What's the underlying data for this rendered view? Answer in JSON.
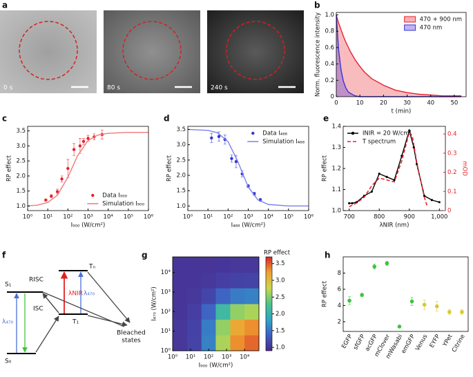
{
  "panel_labels": [
    "a",
    "b",
    "c",
    "d",
    "e",
    "f",
    "g",
    "h"
  ],
  "images": {
    "timestamps": [
      "0 s",
      "80 s",
      "240 s"
    ]
  },
  "diagram": {
    "S1": "S₁",
    "S0": "S₀",
    "T1": "T₁",
    "Tn": "Tₙ",
    "risc": "RISC",
    "isc": "ISC",
    "pump": "λ₄₇₀",
    "nir": "λNIR",
    "probe": "λ₄₇₀",
    "bleached": [
      "Bleached",
      "states"
    ]
  },
  "chart_data": [
    {
      "type": "line",
      "xlabel": "t (min)",
      "ylabel": "Norm. fluorescence intensity",
      "fill": true,
      "legend": "upper right",
      "x": [
        0,
        1,
        2,
        3,
        4,
        5,
        6,
        8,
        10,
        12,
        15,
        20,
        25,
        30,
        35,
        40,
        45,
        50,
        53
      ],
      "xlim": [
        0,
        55
      ],
      "xticks": [
        0,
        10,
        20,
        30,
        40,
        50
      ],
      "ylim": [
        0,
        1.03
      ],
      "yticks": [
        0,
        0.2,
        0.4,
        0.6,
        0.8,
        {
          "value": 1,
          "label": "1.0"
        }
      ],
      "series": [
        {
          "name": "470 + 900 nm",
          "color": "#e8202a",
          "style": "line",
          "values": [
            1.0,
            0.9,
            0.82,
            0.74,
            0.67,
            0.61,
            0.55,
            0.45,
            0.37,
            0.3,
            0.22,
            0.14,
            0.08,
            0.05,
            0.03,
            0.02,
            0.01,
            0.01,
            0.01
          ]
        },
        {
          "name": "470 nm",
          "color": "#3b2fd6",
          "style": "line",
          "values": [
            1.0,
            0.57,
            0.33,
            0.19,
            0.11,
            0.06,
            0.04,
            0.01,
            0,
            0,
            0,
            0,
            0,
            0,
            0,
            0,
            0,
            0,
            0
          ]
        }
      ]
    },
    {
      "type": "scatter",
      "xlabel": "I₉₀₀ (W/cm²)",
      "ylabel": "RP effect",
      "xscale": "log",
      "legend": "lower right",
      "xlim": [
        1,
        1000000
      ],
      "xticks": [
        {
          "value": 1,
          "label": "10⁰"
        },
        {
          "value": 10,
          "label": "10¹"
        },
        {
          "value": 100,
          "label": "10²"
        },
        {
          "value": 1000,
          "label": "10³"
        },
        {
          "value": 10000,
          "label": "10⁴"
        },
        {
          "value": 100000,
          "label": "10⁵"
        },
        {
          "value": 1000000,
          "label": "10⁶"
        }
      ],
      "ylim": [
        0.85,
        3.65
      ],
      "yticks": [
        {
          "value": 1,
          "label": "1.0"
        },
        1.5,
        {
          "value": 2,
          "label": "2.0"
        },
        2.5,
        {
          "value": 3,
          "label": "3.0"
        },
        3.5
      ],
      "series": [
        {
          "name": "Data I₉₀₀",
          "color": "#e8202a",
          "style": "points",
          "x": [
            8,
            15,
            30,
            50,
            100,
            200,
            400,
            600,
            1000,
            2000,
            5000
          ],
          "values": [
            1.2,
            1.33,
            1.48,
            1.9,
            2.25,
            2.88,
            3.0,
            3.15,
            3.25,
            3.3,
            3.38
          ],
          "errors": [
            0.03,
            0.05,
            0.08,
            0.1,
            0.3,
            0.2,
            0.25,
            0.1,
            0.1,
            0.1,
            0.15
          ]
        },
        {
          "name": "Simulation I₉₀₀",
          "color": "#f07878",
          "style": "line",
          "x": [
            1,
            3,
            10,
            30,
            100,
            300,
            1000,
            3000,
            10000,
            100000,
            1000000
          ],
          "values": [
            1.01,
            1.03,
            1.12,
            1.36,
            1.96,
            2.67,
            3.18,
            3.36,
            3.42,
            3.45,
            3.45
          ]
        }
      ]
    },
    {
      "type": "scatter",
      "xlabel": "I₄₈₈ (W/cm²)",
      "ylabel": "RP effect",
      "xscale": "log",
      "legend": "upper right",
      "xlim": [
        1,
        1000000
      ],
      "xticks": [
        {
          "value": 1,
          "label": "10⁰"
        },
        {
          "value": 10,
          "label": "10¹"
        },
        {
          "value": 100,
          "label": "10²"
        },
        {
          "value": 1000,
          "label": "10³"
        },
        {
          "value": 10000,
          "label": "10⁴"
        },
        {
          "value": 100000,
          "label": "10⁵"
        },
        {
          "value": 1000000,
          "label": "10⁶"
        }
      ],
      "ylim": [
        0.85,
        3.6
      ],
      "yticks": [
        {
          "value": 1,
          "label": "1.0"
        },
        1.5,
        {
          "value": 2,
          "label": "2.0"
        },
        2.5,
        {
          "value": 3,
          "label": "3.0"
        },
        3.5
      ],
      "series": [
        {
          "name": "Data I₄₈₈",
          "color": "#2f35d8",
          "style": "points",
          "x": [
            15,
            35,
            70,
            150,
            250,
            500,
            1000,
            2000,
            4000
          ],
          "values": [
            3.22,
            3.27,
            3.17,
            2.55,
            2.45,
            2.05,
            1.65,
            1.4,
            1.2
          ],
          "errors": [
            0.15,
            0.15,
            0.15,
            0.12,
            0.2,
            0.1,
            0.05,
            0.05,
            0.05
          ]
        },
        {
          "name": "Simulation I₄₈₈",
          "color": "#7b80ea",
          "style": "line",
          "x": [
            1,
            10,
            30,
            100,
            300,
            1000,
            3000,
            10000,
            100000,
            1000000
          ],
          "values": [
            3.5,
            3.47,
            3.39,
            3.1,
            2.46,
            1.62,
            1.2,
            1.05,
            1.0,
            1.0
          ]
        }
      ]
    },
    {
      "type": "line",
      "xlabel": "λNIR (nm)",
      "ylabel": "RP effect",
      "y2label": "mOD",
      "y2color": "#e8202a",
      "legend": "upper left",
      "xlim": [
        680,
        1020
      ],
      "xticks": [
        700,
        800,
        900,
        {
          "value": 1000,
          "label": "1,000"
        }
      ],
      "ylim": [
        1.0,
        1.4
      ],
      "yticks": [
        {
          "value": 1,
          "label": "1.0"
        },
        1.1,
        1.2,
        1.3,
        1.4
      ],
      "y2lim": [
        0,
        0.44
      ],
      "y2ticks": [
        0,
        0.1,
        0.2,
        0.3,
        0.4
      ],
      "series": [
        {
          "name": "INIR = 20 W/cm²",
          "color": "#000000",
          "style": "line-points",
          "x": [
            700,
            710,
            725,
            750,
            775,
            800,
            825,
            850,
            875,
            900,
            915,
            925,
            950,
            975,
            1000
          ],
          "values": [
            1.035,
            1.035,
            1.04,
            1.07,
            1.09,
            1.175,
            1.16,
            1.145,
            1.26,
            1.38,
            1.3,
            1.22,
            1.07,
            1.05,
            1.04
          ]
        },
        {
          "name": "T spectrum",
          "color": "#e8202a",
          "style": "line",
          "dash": true,
          "axis": "y2",
          "x": [
            700,
            725,
            750,
            775,
            800,
            825,
            850,
            875,
            890,
            900,
            910,
            925,
            950,
            960
          ],
          "values": [
            0.02,
            0.04,
            0.07,
            0.13,
            0.17,
            0.16,
            0.15,
            0.26,
            0.35,
            0.41,
            0.39,
            0.25,
            0.07,
            0.02
          ]
        }
      ]
    },
    {
      "type": "heatmap",
      "xlabel": "I₉₀₀ (W/cm²)",
      "ylabel": "I₄₇₀ (W/cm²)",
      "xscale": "log",
      "yscale": "log",
      "xlim": [
        1,
        63000
      ],
      "ylim": [
        1,
        63000
      ],
      "xticks": [
        {
          "value": 1,
          "label": "10⁰"
        },
        {
          "value": 10,
          "label": "10¹"
        },
        {
          "value": 100,
          "label": "10²"
        },
        {
          "value": 1000,
          "label": "10³"
        },
        {
          "value": 10000,
          "label": "10⁴"
        }
      ],
      "yticks": [
        {
          "value": 1,
          "label": "10⁰"
        },
        {
          "value": 10,
          "label": "10¹"
        },
        {
          "value": 100,
          "label": "10²"
        },
        {
          "value": 1000,
          "label": "10³"
        },
        {
          "value": 10000,
          "label": "10⁴"
        }
      ],
      "xbins": [
        1,
        6.3,
        40,
        250,
        1600,
        10000,
        63000
      ],
      "ybins": [
        1,
        6.3,
        40,
        250,
        1600,
        10000,
        63000
      ],
      "z": [
        [
          1.02,
          1.12,
          1.59,
          2.66,
          3.3,
          3.45
        ],
        [
          1.02,
          1.11,
          1.56,
          2.56,
          3.16,
          3.3
        ],
        [
          1.01,
          1.08,
          1.4,
          2.12,
          2.56,
          2.66
        ],
        [
          1.0,
          1.03,
          1.14,
          1.4,
          1.56,
          1.59
        ],
        [
          1.0,
          1.01,
          1.03,
          1.08,
          1.11,
          1.12
        ],
        [
          1.0,
          1.0,
          1.0,
          1.01,
          1.02,
          1.02
        ]
      ],
      "zlabel": "RP effect",
      "zlim": [
        0.9,
        3.7
      ],
      "zticks": [
        {
          "value": 1,
          "label": "1.0"
        },
        1.5,
        {
          "value": 2,
          "label": "2.0"
        },
        2.5,
        {
          "value": 3,
          "label": "3.0"
        },
        3.5
      ],
      "colors": [
        "#4a2a8c",
        "#3f5fc4",
        "#2fa6c6",
        "#4cc48a",
        "#c9d84a",
        "#f0a030",
        "#d7262a"
      ]
    },
    {
      "type": "scatter",
      "ylabel": "RP effect",
      "categories": [
        "EGFP",
        "sfGFP",
        "acGFP",
        "mClover",
        "mWasabi",
        "emGFP",
        "Venus",
        "EYFP",
        "YPet",
        "Citrine"
      ],
      "values": [
        4.6,
        5.3,
        8.8,
        9.2,
        1.4,
        4.5,
        4.1,
        3.9,
        3.2,
        3.2
      ],
      "errors": [
        0.5,
        0.2,
        0.3,
        0.25,
        0.15,
        0.5,
        0.6,
        0.6,
        0.3,
        0.3
      ],
      "colors": [
        "#3cc43c",
        "#3cc43c",
        "#3cc43c",
        "#3cc43c",
        "#3cc43c",
        "#3cc43c",
        "#d8c830",
        "#d8c830",
        "#d8c830",
        "#d8c830"
      ],
      "ylim": [
        0.8,
        10
      ],
      "yticks": [
        2,
        4,
        6,
        8
      ]
    }
  ]
}
